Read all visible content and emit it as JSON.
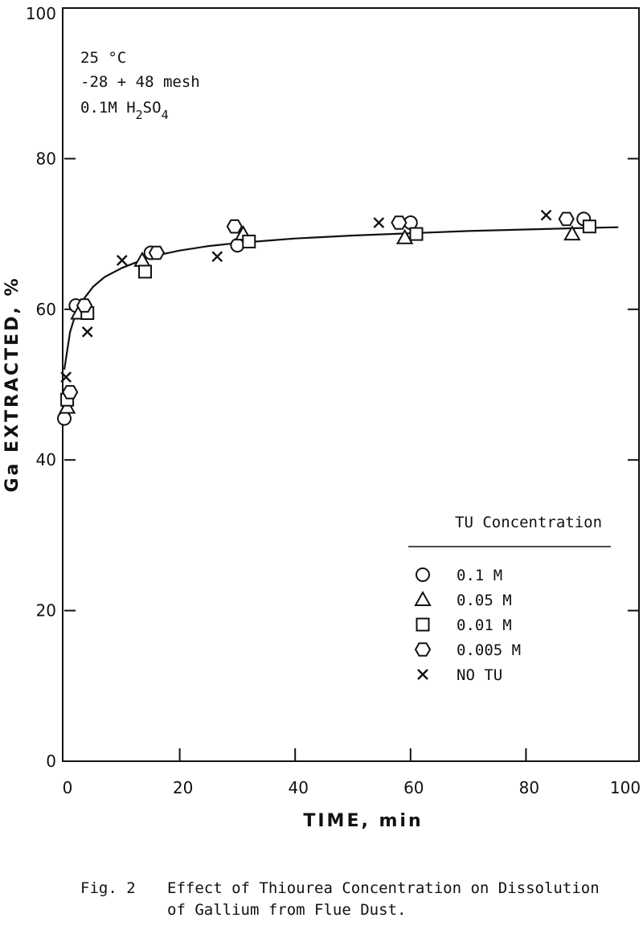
{
  "caption": {
    "figure_number": "Fig. 2",
    "line1": "Effect of Thiourea Concentration on Dissolution",
    "line2": "of Gallium from Flue Dust."
  },
  "conditions": {
    "temperature": "25 °C",
    "mesh": "-28 + 48 mesh",
    "acid_prefix": "0.1M H",
    "acid_sub1": "2",
    "acid_mid": "SO",
    "acid_sub2": "4"
  },
  "chart_data": {
    "type": "scatter",
    "xlabel": "TIME, min",
    "ylabel": "Ga EXTRACTED, %",
    "xlim": [
      0,
      100
    ],
    "ylim": [
      0,
      100
    ],
    "xticks": [
      0,
      20,
      40,
      60,
      80,
      100
    ],
    "yticks": [
      0,
      20,
      40,
      60,
      80,
      100
    ],
    "grid": false,
    "legend": {
      "title": "TU Concentration",
      "position": "bottom-right"
    },
    "series": [
      {
        "name": "0.1 M",
        "marker": "circle",
        "x": [
          0,
          2,
          15,
          30,
          60,
          90
        ],
        "y": [
          45.5,
          60.5,
          67.5,
          68.5,
          71.5,
          72
        ]
      },
      {
        "name": "0.05 M",
        "marker": "triangle",
        "x": [
          0.5,
          2.5,
          13.5,
          31,
          59,
          88
        ],
        "y": [
          47,
          59.5,
          66.5,
          70,
          69.5,
          70
        ]
      },
      {
        "name": "0.01 M",
        "marker": "square",
        "x": [
          0.5,
          4,
          14,
          32,
          61,
          91
        ],
        "y": [
          48,
          59.5,
          65,
          69,
          70,
          71
        ]
      },
      {
        "name": "0.005 M",
        "marker": "hexagon",
        "x": [
          1,
          3.5,
          16,
          29.5,
          58,
          87
        ],
        "y": [
          49,
          60.5,
          67.5,
          71,
          71.5,
          72
        ]
      },
      {
        "name": "NO TU",
        "marker": "cross",
        "x": [
          0.3,
          4,
          10,
          26.5,
          54.5,
          83.5
        ],
        "y": [
          51,
          57,
          66.5,
          67,
          71.5,
          72.5
        ]
      }
    ],
    "fit_curve": {
      "x": [
        0,
        1,
        2,
        3,
        5,
        7,
        10,
        15,
        20,
        25,
        30,
        35,
        40,
        50,
        60,
        70,
        80,
        90,
        96
      ],
      "y": [
        52,
        57,
        59.5,
        61,
        63,
        64.3,
        65.5,
        67,
        67.8,
        68.4,
        68.8,
        69.1,
        69.4,
        69.8,
        70.1,
        70.4,
        70.6,
        70.8,
        70.9
      ]
    }
  }
}
